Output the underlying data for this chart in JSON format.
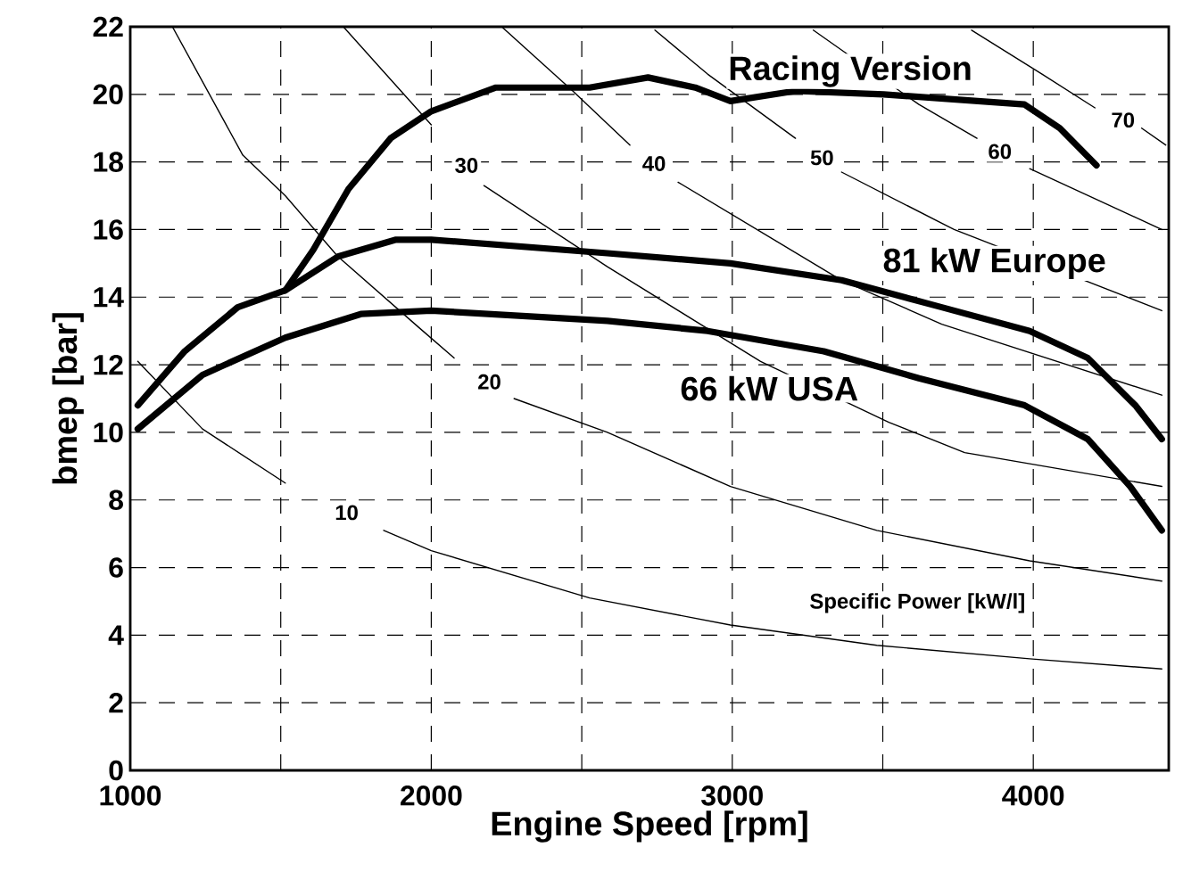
{
  "chart_data": {
    "type": "line",
    "xlabel": "Engine Speed [rpm]",
    "ylabel": "bmep [bar]",
    "xlim": [
      1000,
      4450
    ],
    "ylim": [
      0,
      22
    ],
    "xticks": [
      1000,
      {
        "value": 1500,
        "label": null
      },
      2000,
      {
        "value": 2500,
        "label": null
      },
      3000,
      {
        "value": 3500,
        "label": null
      },
      4000
    ],
    "yticks": [
      0,
      2,
      4,
      6,
      8,
      10,
      12,
      14,
      16,
      18,
      20,
      22
    ],
    "grid": true,
    "annotations": [
      "Specific Power [kW/l]"
    ],
    "series": [
      {
        "name": "Racing Version",
        "color": "#000000",
        "x": [
          1515,
          1608,
          1725,
          1865,
          2000,
          2215,
          2470,
          2526,
          2720,
          2877,
          2994,
          3210,
          3503,
          3971,
          4088,
          4210
        ],
        "values": [
          14.2,
          15.4,
          17.2,
          18.7,
          19.5,
          20.2,
          20.2,
          20.2,
          20.5,
          20.2,
          19.8,
          20.1,
          20.0,
          19.7,
          19.0,
          17.9
        ]
      },
      {
        "name": "81 kW Europe",
        "color": "#000000",
        "x": [
          1025,
          1181,
          1357,
          1515,
          1690,
          1883,
          2000,
          2585,
          2994,
          3363,
          3696,
          3988,
          4181,
          4339,
          4427
        ],
        "values": [
          10.8,
          12.4,
          13.7,
          14.2,
          15.2,
          15.7,
          15.7,
          15.3,
          15.0,
          14.5,
          13.7,
          13.0,
          12.2,
          10.8,
          9.8
        ]
      },
      {
        "name": "66 kW USA",
        "color": "#000000",
        "x": [
          1025,
          1240,
          1515,
          1766,
          2000,
          2585,
          2918,
          3304,
          3620,
          3971,
          4181,
          4322,
          4427
        ],
        "values": [
          10.1,
          11.7,
          12.8,
          13.5,
          13.6,
          13.3,
          13.0,
          12.4,
          11.6,
          10.8,
          9.8,
          8.4,
          7.1
        ]
      },
      {
        "name": "10",
        "color": "#000000",
        "x": [
          1025,
          1240,
          1515,
          1719,
          1842,
          2000,
          2526,
          2994,
          3480,
          3988,
          4427
        ],
        "values": [
          12.1,
          10.1,
          8.5,
          null,
          7.1,
          6.5,
          5.1,
          4.3,
          3.7,
          3.3,
          3.0
        ]
      },
      {
        "name": "20",
        "color": "#000000",
        "x": [
          1140,
          1374,
          1515,
          1690,
          1959,
          2076,
          2193,
          2275,
          2585,
          2994,
          3480,
          3988,
          4427
        ],
        "values": [
          22,
          18.2,
          17.0,
          15.2,
          13.1,
          12.2,
          null,
          11.0,
          10.0,
          8.4,
          7.1,
          6.2,
          5.6
        ]
      },
      {
        "name": "30",
        "color": "#000000",
        "x": [
          1708,
          2000,
          2117,
          2175,
          2585,
          3094,
          3520,
          3772,
          4427
        ],
        "values": [
          22,
          19.1,
          null,
          17.3,
          14.9,
          12.1,
          10.3,
          9.4,
          8.4
        ]
      },
      {
        "name": "40",
        "color": "#000000",
        "x": [
          2234,
          2470,
          2660,
          2740,
          2820,
          3363,
          3696,
          4427
        ],
        "values": [
          22,
          20.1,
          18.5,
          null,
          17.4,
          14.5,
          13.2,
          11.1
        ]
      },
      {
        "name": "50",
        "color": "#000000",
        "x": [
          2743,
          2918,
          3210,
          3298,
          3363,
          3737,
          4427
        ],
        "values": [
          21.9,
          20.6,
          18.7,
          null,
          17.7,
          16.0,
          13.6
        ]
      },
      {
        "name": "60",
        "color": "#000000",
        "x": [
          3269,
          3620,
          3813,
          3889,
          3988,
          4427
        ],
        "values": [
          21.9,
          19.7,
          18.7,
          null,
          17.8,
          16.0
        ]
      },
      {
        "name": "70",
        "color": "#000000",
        "x": [
          3795,
          4029,
          4205,
          4298,
          4360,
          4440
        ],
        "values": [
          21.9,
          20.6,
          19.6,
          null,
          19.0,
          18.5
        ]
      }
    ]
  }
}
